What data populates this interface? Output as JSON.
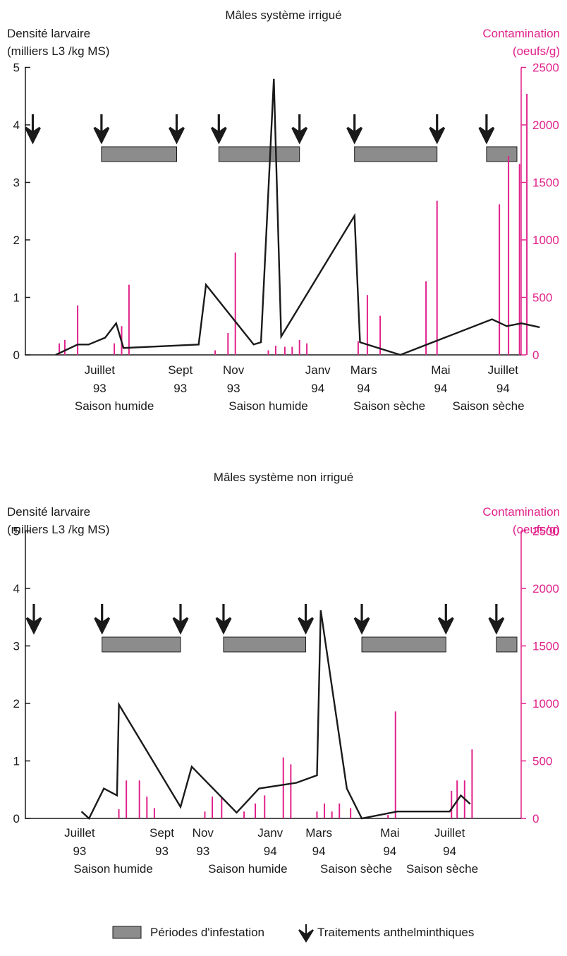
{
  "colors": {
    "line": "#1a1a1a",
    "contamination": "#e0218a",
    "period_fill": "#8c8c8c",
    "period_stroke": "#1a1a1a",
    "arrow": "#1a1a1a"
  },
  "legend": {
    "periods_label": "Périodes d'infestation",
    "treatments_label": "Traitements anthelminthiques"
  },
  "chart_data": [
    {
      "type": "line",
      "title": "Mâles système irrigué",
      "ylabel_left_line1": "Densité larvaire",
      "ylabel_left_line2": "(milliers L3 /kg MS)",
      "ylabel_right_line1": "Contamination",
      "ylabel_right_line2": "(oeufs/g)",
      "ylim_left": [
        0,
        5
      ],
      "yticks_left": [
        "0",
        "1",
        "2",
        "3",
        "4",
        "5"
      ],
      "ylim_right": [
        0,
        2500
      ],
      "yticks_right": [
        "0",
        "500",
        "1000",
        "1500",
        "2000",
        "2500"
      ],
      "x_unit": "month index (0 = early May 1993, Juillet 93 = 1.9)",
      "xticks": [
        {
          "x": 1.9,
          "month": "Juillet",
          "year": "93"
        },
        {
          "x": 4.1,
          "month": "Sept",
          "year": "93"
        },
        {
          "x": 5.55,
          "month": "Nov",
          "year": "93"
        },
        {
          "x": 7.85,
          "month": "Janv",
          "year": "94"
        },
        {
          "x": 9.1,
          "month": "Mars",
          "year": "94"
        },
        {
          "x": 11.2,
          "month": "Mai",
          "year": "94"
        },
        {
          "x": 12.9,
          "month": "Juillet",
          "year": "94"
        }
      ],
      "seasons": [
        {
          "x": 2.3,
          "label": "Saison humide"
        },
        {
          "x": 6.5,
          "label": "Saison humide"
        },
        {
          "x": 9.8,
          "label": "Saison sèche"
        },
        {
          "x": 12.5,
          "label": "Saison sèche"
        }
      ],
      "larval_density": [
        {
          "x": 0.7,
          "y": 0.0
        },
        {
          "x": 1.3,
          "y": 0.18
        },
        {
          "x": 1.6,
          "y": 0.18
        },
        {
          "x": 2.05,
          "y": 0.3
        },
        {
          "x": 2.35,
          "y": 0.55
        },
        {
          "x": 2.55,
          "y": 0.12
        },
        {
          "x": 4.6,
          "y": 0.18
        },
        {
          "x": 4.8,
          "y": 1.22
        },
        {
          "x": 6.1,
          "y": 0.18
        },
        {
          "x": 6.3,
          "y": 0.22
        },
        {
          "x": 6.65,
          "y": 4.8
        },
        {
          "x": 6.85,
          "y": 0.32
        },
        {
          "x": 8.85,
          "y": 2.42
        },
        {
          "x": 9.0,
          "y": 0.22
        },
        {
          "x": 10.1,
          "y": 0.0
        },
        {
          "x": 12.6,
          "y": 0.62
        },
        {
          "x": 13.0,
          "y": 0.5
        },
        {
          "x": 13.4,
          "y": 0.55
        },
        {
          "x": 13.9,
          "y": 0.48
        }
      ],
      "contamination": [
        {
          "x": 0.8,
          "y": 100
        },
        {
          "x": 0.95,
          "y": 130
        },
        {
          "x": 1.3,
          "y": 430
        },
        {
          "x": 2.3,
          "y": 100
        },
        {
          "x": 2.5,
          "y": 250
        },
        {
          "x": 2.7,
          "y": 610
        },
        {
          "x": 5.05,
          "y": 40
        },
        {
          "x": 5.4,
          "y": 190
        },
        {
          "x": 5.6,
          "y": 890
        },
        {
          "x": 6.5,
          "y": 40
        },
        {
          "x": 6.7,
          "y": 80
        },
        {
          "x": 6.95,
          "y": 70
        },
        {
          "x": 7.15,
          "y": 70
        },
        {
          "x": 7.35,
          "y": 130
        },
        {
          "x": 7.55,
          "y": 100
        },
        {
          "x": 8.95,
          "y": 120
        },
        {
          "x": 9.2,
          "y": 520
        },
        {
          "x": 9.55,
          "y": 340
        },
        {
          "x": 10.8,
          "y": 640
        },
        {
          "x": 11.1,
          "y": 1340
        },
        {
          "x": 12.8,
          "y": 1310
        },
        {
          "x": 13.05,
          "y": 1730
        },
        {
          "x": 13.35,
          "y": 1660
        },
        {
          "x": 13.55,
          "y": 2270
        },
        {
          "x": 14.85,
          "y": 1330
        }
      ],
      "treatments_x": [
        0.0,
        1.95,
        4.0,
        5.15,
        7.35,
        8.85,
        11.1,
        12.45
      ],
      "infestation_periods": [
        [
          1.95,
          4.0
        ],
        [
          5.15,
          7.35
        ],
        [
          8.85,
          11.1
        ],
        [
          12.45,
          14.05
        ]
      ]
    },
    {
      "type": "line",
      "title": "Mâles système non irrigué",
      "ylabel_left_line1": "Densité larvaire",
      "ylabel_left_line2": "(milliers L3 /kg MS)",
      "ylabel_right_line1": "Contamination",
      "ylabel_right_line2": "(oeufs/g)",
      "ylim_left": [
        0,
        5
      ],
      "yticks_left": [
        "0",
        "1",
        "2",
        "3",
        "4",
        "5"
      ],
      "ylim_right": [
        0,
        2500
      ],
      "yticks_right": [
        "0",
        "500",
        "1000",
        "1500",
        "2000",
        "2500"
      ],
      "x_unit": "month index (0 = early May 1993, Juillet 93 = 1.9)",
      "xticks": [
        {
          "x": 1.3,
          "month": "Juillet",
          "year": "93"
        },
        {
          "x": 3.5,
          "month": "Sept",
          "year": "93"
        },
        {
          "x": 4.6,
          "month": "Nov",
          "year": "93"
        },
        {
          "x": 6.4,
          "month": "Janv",
          "year": "94"
        },
        {
          "x": 7.7,
          "month": "Mars",
          "year": "94"
        },
        {
          "x": 9.6,
          "month": "Mai",
          "year": "94"
        },
        {
          "x": 11.2,
          "month": "Juillet",
          "year": "94"
        }
      ],
      "seasons": [
        {
          "x": 2.2,
          "label": "Saison humide"
        },
        {
          "x": 5.8,
          "label": "Saison humide"
        },
        {
          "x": 8.7,
          "label": "Saison sèche"
        },
        {
          "x": 11.0,
          "label": "Saison sèche"
        }
      ],
      "larval_density": [
        {
          "x": 1.35,
          "y": 0.12
        },
        {
          "x": 1.55,
          "y": 0.0
        },
        {
          "x": 1.95,
          "y": 0.52
        },
        {
          "x": 2.3,
          "y": 0.4
        },
        {
          "x": 2.35,
          "y": 1.98
        },
        {
          "x": 4.0,
          "y": 0.2
        },
        {
          "x": 4.3,
          "y": 0.9
        },
        {
          "x": 5.5,
          "y": 0.1
        },
        {
          "x": 6.1,
          "y": 0.52
        },
        {
          "x": 7.1,
          "y": 0.62
        },
        {
          "x": 7.65,
          "y": 0.75
        },
        {
          "x": 7.75,
          "y": 3.62
        },
        {
          "x": 8.45,
          "y": 0.52
        },
        {
          "x": 8.85,
          "y": 0.0
        },
        {
          "x": 9.8,
          "y": 0.12
        },
        {
          "x": 11.2,
          "y": 0.12
        },
        {
          "x": 11.5,
          "y": 0.4
        },
        {
          "x": 11.75,
          "y": 0.25
        }
      ],
      "contamination": [
        {
          "x": 2.35,
          "y": 80
        },
        {
          "x": 2.55,
          "y": 330
        },
        {
          "x": 2.9,
          "y": 330
        },
        {
          "x": 3.1,
          "y": 190
        },
        {
          "x": 3.3,
          "y": 90
        },
        {
          "x": 4.65,
          "y": 60
        },
        {
          "x": 4.85,
          "y": 190
        },
        {
          "x": 5.1,
          "y": 190
        },
        {
          "x": 5.7,
          "y": 60
        },
        {
          "x": 6.0,
          "y": 130
        },
        {
          "x": 6.25,
          "y": 200
        },
        {
          "x": 6.75,
          "y": 530
        },
        {
          "x": 6.95,
          "y": 470
        },
        {
          "x": 7.65,
          "y": 60
        },
        {
          "x": 7.85,
          "y": 130
        },
        {
          "x": 8.05,
          "y": 60
        },
        {
          "x": 8.25,
          "y": 130
        },
        {
          "x": 8.55,
          "y": 90
        },
        {
          "x": 9.55,
          "y": 30
        },
        {
          "x": 9.75,
          "y": 930
        },
        {
          "x": 11.25,
          "y": 240
        },
        {
          "x": 11.4,
          "y": 330
        },
        {
          "x": 11.6,
          "y": 330
        },
        {
          "x": 11.8,
          "y": 600
        }
      ],
      "treatments_x": [
        0.0,
        1.9,
        4.0,
        5.15,
        7.35,
        8.85,
        11.1,
        12.45
      ],
      "infestation_periods": [
        [
          1.9,
          4.0
        ],
        [
          5.15,
          7.35
        ],
        [
          8.85,
          11.1
        ],
        [
          12.45,
          14.05
        ]
      ]
    }
  ]
}
